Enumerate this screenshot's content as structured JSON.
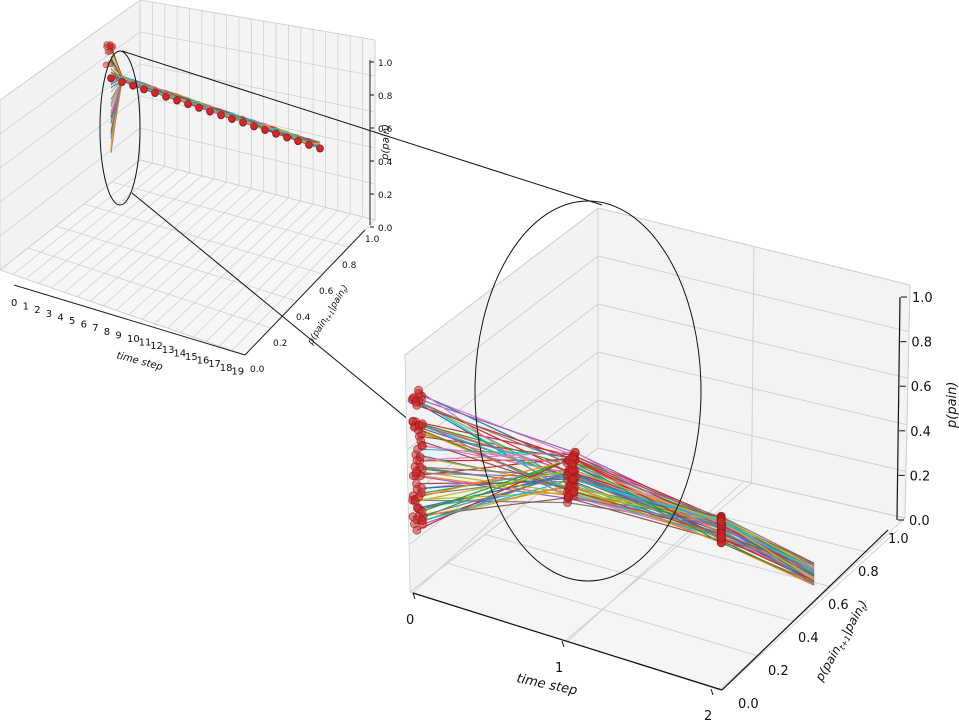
{
  "chart_data": [
    {
      "type": "line3d",
      "panel": "overview",
      "xlabel": "time step",
      "ylabel": "p(pain_{t+1}|pain_t)",
      "zlabel": "p(pain)",
      "x_ticks": [
        "0",
        "1",
        "2",
        "3",
        "4",
        "5",
        "6",
        "7",
        "8",
        "9",
        "10",
        "11",
        "12",
        "13",
        "14",
        "15",
        "16",
        "17",
        "18",
        "19"
      ],
      "y_ticks": [
        "0.0",
        "0.2",
        "0.4",
        "0.6",
        "0.8",
        "1.0"
      ],
      "z_ticks": [
        "0.0",
        "0.2",
        "0.4",
        "0.6",
        "0.8",
        "1.0"
      ],
      "xlim": [
        0,
        19
      ],
      "ylim": [
        0,
        1
      ],
      "zlim": [
        0,
        1
      ],
      "grid": true,
      "n_series": 60,
      "series_summary": {
        "t0_z_range": [
          0.25,
          0.92
        ],
        "converged_z": 0.72,
        "converged_y": 0.0,
        "marker_color": "#d62728"
      }
    },
    {
      "type": "line3d",
      "panel": "zoomed inset",
      "xlabel": "time step",
      "ylabel": "p(pain_{t+1}|pain_t)",
      "zlabel": "p(pain)",
      "x_ticks": [
        "0",
        "1",
        "2"
      ],
      "y_ticks": [
        "0.0",
        "0.2",
        "0.4",
        "0.6",
        "0.8",
        "1.0"
      ],
      "z_ticks": [
        "0.0",
        "0.2",
        "0.4",
        "0.6",
        "0.8",
        "1.0"
      ],
      "xlim": [
        0,
        2
      ],
      "ylim": [
        0,
        1
      ],
      "zlim": [
        0,
        1
      ],
      "grid": true,
      "n_series": 60,
      "series_summary": {
        "t0_z_range": [
          0.25,
          0.92
        ],
        "t1_z_range": [
          0.62,
          0.82
        ],
        "t2_z_range": [
          0.66,
          0.78
        ],
        "marker_color": "#d62728"
      }
    }
  ],
  "labels": {
    "big_x_ticks": [
      "0",
      "1",
      "2"
    ],
    "small_x_ticks": [
      "0",
      "1",
      "2",
      "3",
      "4",
      "5",
      "6",
      "7",
      "8",
      "9",
      "10",
      "11",
      "12",
      "13",
      "14",
      "15",
      "16",
      "17",
      "18",
      "19"
    ],
    "y_ticks": [
      "0.0",
      "0.2",
      "0.4",
      "0.6",
      "0.8",
      "1.0"
    ],
    "z_ticks": [
      "0.0",
      "0.2",
      "0.4",
      "0.6",
      "0.8",
      "1.0"
    ],
    "xlabel": "time step",
    "zlabel_prefix": "p(",
    "zlabel_word": "pain",
    "zlabel_suffix": ")",
    "ylabel_prefix": "p(",
    "ylabel_pain": "pain",
    "ylabel_sub1": "t+1",
    "ylabel_bar": "|",
    "ylabel_sub2": "t",
    "ylabel_suffix": ")"
  },
  "colors": {
    "series_palette": [
      "#1f77b4",
      "#ff7f0e",
      "#2ca02c",
      "#d62728",
      "#9467bd",
      "#8c564b",
      "#e377c2",
      "#7f7f7f",
      "#bcbd22",
      "#17becf"
    ],
    "marker": "#d62728",
    "marker_edge": "#8b1a1a",
    "grid": "#d0d0d0",
    "pane": "#f2f2f2"
  }
}
